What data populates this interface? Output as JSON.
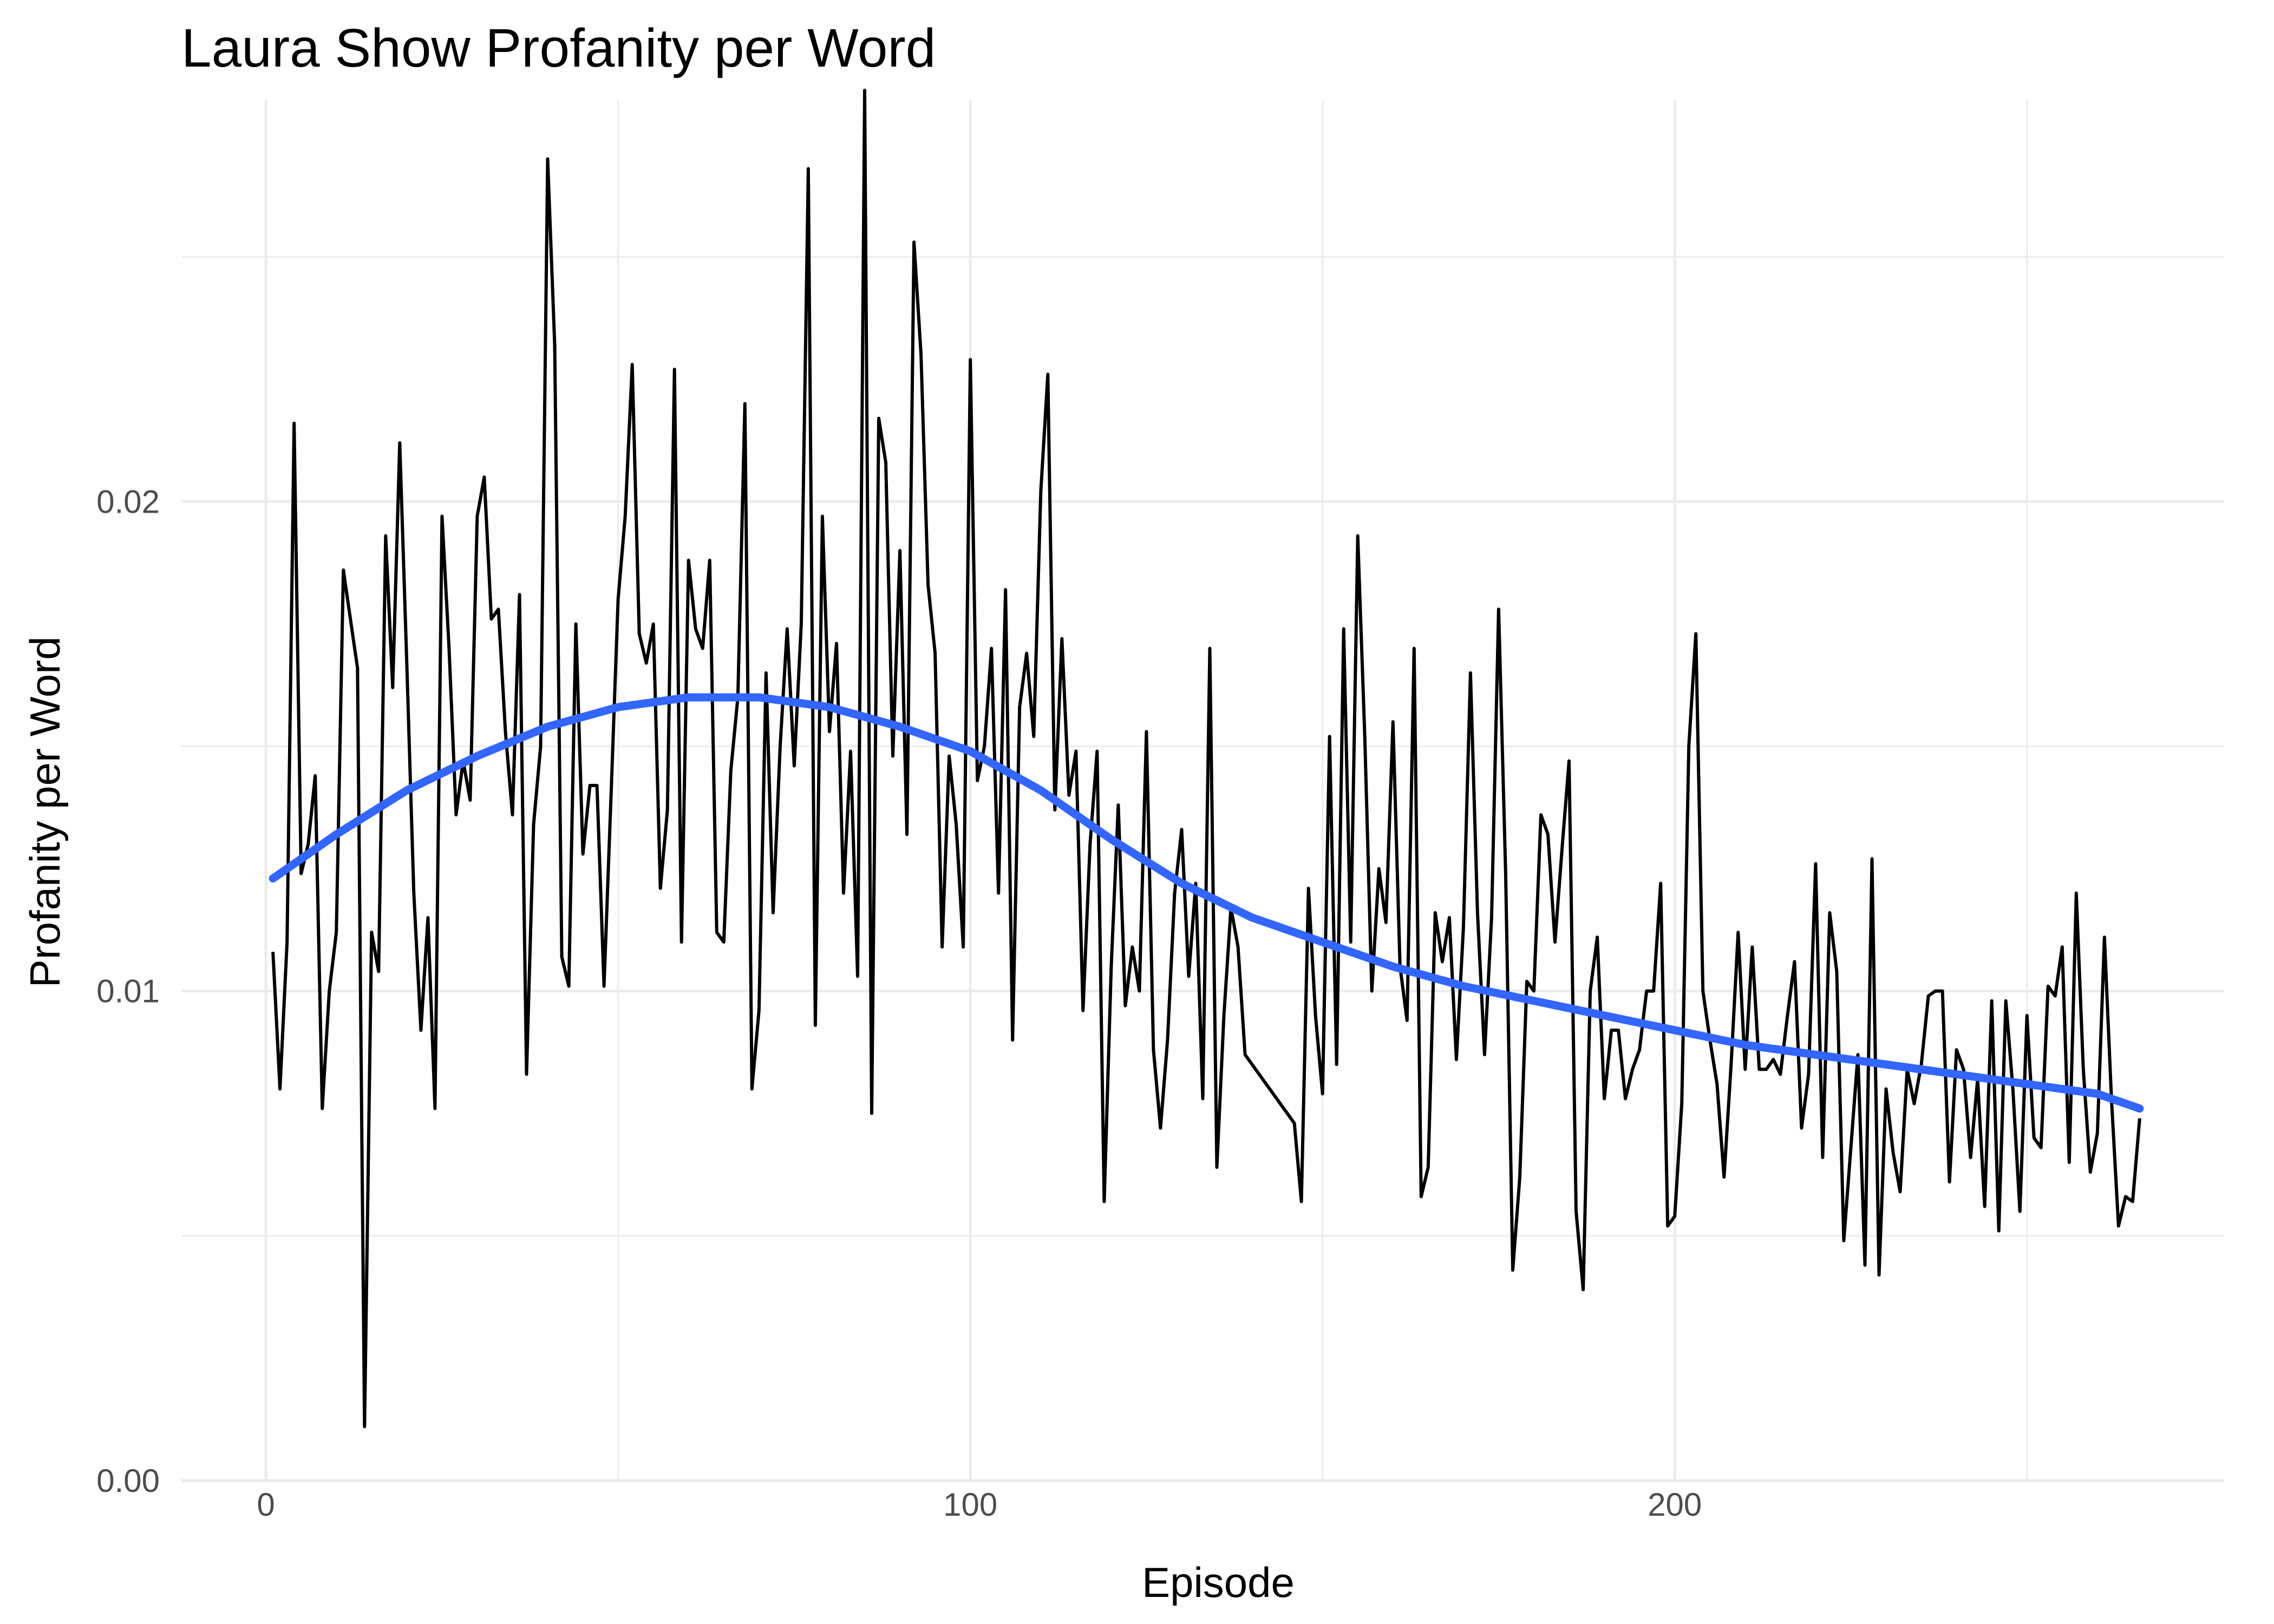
{
  "chart_data": {
    "type": "line",
    "title": "Laura Show Profanity per Word",
    "xlabel": "Episode",
    "ylabel": "Profanity per Word",
    "xlim": [
      -12,
      278
    ],
    "ylim": [
      0,
      0.0282
    ],
    "x_ticks": [
      0,
      100,
      200
    ],
    "x_tick_labels": [
      "0",
      "100",
      "200"
    ],
    "y_ticks": [
      0,
      0.01,
      0.02
    ],
    "y_tick_labels": [
      "0.00",
      "0.01",
      "0.02"
    ],
    "grid": true,
    "legend": "none",
    "colors": {
      "data_line": "#000000",
      "smooth_line": "#3366FF",
      "grid": "#ebebeb"
    },
    "series": [
      {
        "kind": "raw",
        "x": [
          1,
          2,
          3,
          4,
          5,
          6,
          7,
          8,
          9,
          10,
          11,
          12,
          13,
          14,
          15,
          16,
          17,
          18,
          19,
          20,
          21,
          22,
          23,
          24,
          25,
          26,
          27,
          28,
          29,
          30,
          31,
          32,
          33,
          34,
          35,
          36,
          37,
          38,
          39,
          40,
          41,
          42,
          43,
          44,
          45,
          46,
          47,
          48,
          49,
          50,
          51,
          52,
          53,
          54,
          55,
          56,
          57,
          58,
          59,
          60,
          61,
          62,
          63,
          64,
          65,
          66,
          67,
          68,
          69,
          70,
          71,
          72,
          73,
          74,
          75,
          76,
          77,
          78,
          79,
          80,
          81,
          82,
          83,
          84,
          85,
          86,
          87,
          88,
          89,
          90,
          91,
          92,
          93,
          94,
          95,
          96,
          97,
          98,
          99,
          100,
          101,
          102,
          103,
          104,
          105,
          106,
          107,
          108,
          109,
          110,
          111,
          112,
          113,
          114,
          115,
          116,
          117,
          118,
          119,
          120,
          121,
          122,
          123,
          124,
          125,
          126,
          127,
          128,
          129,
          130,
          131,
          132,
          133,
          134,
          135,
          136,
          137,
          138,
          139,
          140,
          141,
          142,
          143,
          144,
          145,
          146,
          147,
          148,
          149,
          150,
          151,
          152,
          153,
          154,
          155,
          156,
          157,
          158,
          159,
          160,
          161,
          162,
          163,
          164,
          165,
          166,
          167,
          168,
          169,
          170,
          171,
          172,
          173,
          174,
          175,
          176,
          177,
          178,
          179,
          180,
          181,
          182,
          183,
          184,
          185,
          186,
          187,
          188,
          189,
          190,
          191,
          192,
          193,
          194,
          195,
          196,
          197,
          198,
          199,
          200,
          201,
          202,
          203,
          204,
          205,
          206,
          207,
          208,
          209,
          210,
          211,
          212,
          213,
          214,
          215,
          216,
          217,
          218,
          219,
          220,
          221,
          222,
          223,
          224,
          225,
          226,
          227,
          228,
          229,
          230,
          231,
          232,
          233,
          234,
          235,
          236,
          237,
          238,
          239,
          240,
          241,
          242,
          243,
          244,
          245,
          246,
          247,
          248,
          249,
          250,
          251,
          252,
          253,
          254,
          255,
          256,
          257,
          258,
          259,
          260,
          261,
          262,
          263,
          264,
          265,
          266
        ],
        "values": [
          0.0108,
          0.008,
          0.011,
          0.0216,
          0.0124,
          0.013,
          0.0144,
          0.0076,
          0.01,
          0.0112,
          0.0186,
          0.0176,
          0.0166,
          0.0011,
          0.0112,
          0.0104,
          0.0193,
          0.0162,
          0.0212,
          0.0167,
          0.012,
          0.0092,
          0.0115,
          0.0076,
          0.0197,
          0.017,
          0.0136,
          0.0147,
          0.0139,
          0.0197,
          0.0205,
          0.0176,
          0.0178,
          0.0153,
          0.0136,
          0.0181,
          0.0083,
          0.0134,
          0.015,
          0.027,
          0.0232,
          0.0107,
          0.0101,
          0.0175,
          0.0128,
          0.0142,
          0.0142,
          0.0101,
          0.014,
          0.018,
          0.0197,
          0.0228,
          0.0173,
          0.0167,
          0.0175,
          0.0121,
          0.0137,
          0.0227,
          0.011,
          0.0188,
          0.0174,
          0.017,
          0.0188,
          0.0112,
          0.011,
          0.0145,
          0.016,
          0.022,
          0.008,
          0.0096,
          0.0165,
          0.0116,
          0.015,
          0.0174,
          0.0146,
          0.0175,
          0.0268,
          0.0093,
          0.0197,
          0.0153,
          0.0171,
          0.012,
          0.0149,
          0.0103,
          0.0284,
          0.0075,
          0.0217,
          0.0208,
          0.0148,
          0.019,
          0.0132,
          0.0253,
          0.023,
          0.0183,
          0.0169,
          0.0109,
          0.0148,
          0.0134,
          0.0109,
          0.0229,
          0.0143,
          0.015,
          0.017,
          0.012,
          0.0182,
          0.009,
          0.0158,
          0.0169,
          0.0152,
          0.0202,
          0.0226,
          0.0137,
          0.0172,
          0.014,
          0.0149,
          0.0096,
          0.013,
          0.0149,
          0.0057,
          0.0105,
          0.0138,
          0.0097,
          0.0109,
          0.01,
          0.0153,
          0.0088,
          0.0072,
          0.009,
          0.012,
          0.0133,
          0.0103,
          0.0122,
          0.0078,
          0.017,
          0.0064,
          0.0095,
          0.0117,
          0.0109,
          0.0087,
          0.0085,
          0.0083,
          0.0081,
          0.0079,
          0.0077,
          0.0075,
          0.0073,
          0.0057,
          0.0121,
          0.0095,
          0.0079,
          0.0152,
          0.0085,
          0.0174,
          0.011,
          0.0193,
          0.0152,
          0.01,
          0.0125,
          0.0114,
          0.0155,
          0.0105,
          0.0094,
          0.017,
          0.0058,
          0.0064,
          0.0116,
          0.0106,
          0.0115,
          0.0086,
          0.0113,
          0.0165,
          0.0116,
          0.0087,
          0.0115,
          0.0178,
          0.0124,
          0.0043,
          0.0062,
          0.0102,
          0.01,
          0.0136,
          0.0132,
          0.011,
          0.0129,
          0.0147,
          0.0055,
          0.0039,
          0.01,
          0.0111,
          0.0078,
          0.0092,
          0.0092,
          0.0078,
          0.0084,
          0.0088,
          0.01,
          0.01,
          0.0122,
          0.0052,
          0.0054,
          0.0077,
          0.015,
          0.0173,
          0.01,
          0.009,
          0.0081,
          0.0062,
          0.0085,
          0.0112,
          0.0084,
          0.0109,
          0.0084,
          0.0084,
          0.0086,
          0.0083,
          0.0095,
          0.0106,
          0.0072,
          0.0083,
          0.0126,
          0.0066,
          0.0116,
          0.0104,
          0.0049,
          0.0068,
          0.0087,
          0.0044,
          0.0127,
          0.0042,
          0.008,
          0.0067,
          0.0059,
          0.0084,
          0.0077,
          0.0085,
          0.0099,
          0.01,
          0.01,
          0.0061,
          0.0088,
          0.0084,
          0.0066,
          0.0082,
          0.0056,
          0.0098,
          0.0051,
          0.0098,
          0.008,
          0.0055,
          0.0095,
          0.007,
          0.0068,
          0.0101,
          0.0099,
          0.0109,
          0.0065,
          0.012,
          0.0084,
          0.0063,
          0.0071,
          0.0111,
          0.0078,
          0.0052,
          0.0058,
          0.0057,
          0.0074
        ]
      },
      {
        "kind": "smooth",
        "x": [
          1,
          10,
          20,
          30,
          40,
          50,
          60,
          70,
          80,
          90,
          100,
          110,
          120,
          130,
          140,
          150,
          160,
          170,
          180,
          190,
          200,
          210,
          220,
          230,
          240,
          250,
          260,
          266
        ],
        "values": [
          0.0123,
          0.0132,
          0.0141,
          0.0148,
          0.0154,
          0.0158,
          0.016,
          0.016,
          0.0158,
          0.0154,
          0.0149,
          0.0141,
          0.0131,
          0.0122,
          0.0115,
          0.011,
          0.0105,
          0.0101,
          0.0098,
          0.0095,
          0.0092,
          0.0089,
          0.0087,
          0.0085,
          0.0083,
          0.0081,
          0.0079,
          0.0076
        ]
      }
    ]
  }
}
